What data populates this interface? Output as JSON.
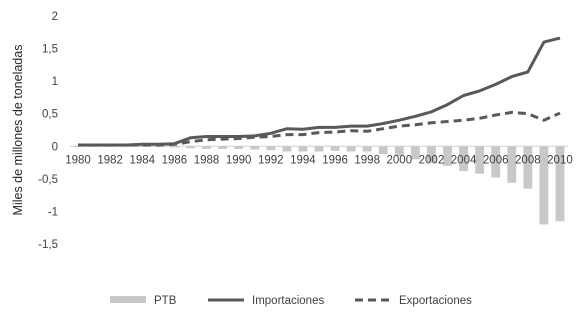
{
  "chart_data": {
    "type": "bar+line",
    "title": "",
    "xlabel": "",
    "ylabel": "Miles de millones de toneladas",
    "ylim": [
      -1.5,
      2
    ],
    "yticks": [
      {
        "value": 2,
        "label": "2"
      },
      {
        "value": 1.5,
        "label": "1,5"
      },
      {
        "value": 1,
        "label": "1"
      },
      {
        "value": 0.5,
        "label": "0,5"
      },
      {
        "value": 0,
        "label": "0"
      },
      {
        "value": -0.5,
        "label": "-0,5"
      },
      {
        "value": -1,
        "label": "-1"
      },
      {
        "value": -1.5,
        "label": "-1,5"
      }
    ],
    "x": [
      1980,
      1981,
      1982,
      1983,
      1984,
      1985,
      1986,
      1987,
      1988,
      1989,
      1990,
      1991,
      1992,
      1993,
      1994,
      1995,
      1996,
      1997,
      1998,
      1999,
      2000,
      2001,
      2002,
      2003,
      2004,
      2005,
      2006,
      2007,
      2008,
      2009,
      2010
    ],
    "xtick_labels": [
      "1980",
      "1982",
      "1984",
      "1986",
      "1988",
      "1990",
      "1992",
      "1994",
      "1996",
      "1998",
      "2000",
      "2002",
      "2004",
      "2006",
      "2008",
      "2010"
    ],
    "legend_position": "bottom",
    "grid": false,
    "series": [
      {
        "name": "PTB",
        "kind": "bar",
        "color": "#c8c8c8",
        "values": [
          -0.01,
          -0.01,
          -0.01,
          -0.01,
          -0.01,
          -0.01,
          -0.02,
          -0.03,
          -0.04,
          -0.04,
          -0.04,
          -0.05,
          -0.06,
          -0.08,
          -0.08,
          -0.08,
          -0.07,
          -0.08,
          -0.08,
          -0.12,
          -0.15,
          -0.2,
          -0.25,
          -0.3,
          -0.38,
          -0.42,
          -0.48,
          -0.56,
          -0.65,
          -1.2,
          -1.15
        ]
      },
      {
        "name": "Importaciones",
        "kind": "line",
        "style": "solid",
        "color": "#595959",
        "values": [
          0.02,
          0.02,
          0.02,
          0.02,
          0.03,
          0.03,
          0.04,
          0.13,
          0.15,
          0.15,
          0.15,
          0.16,
          0.2,
          0.27,
          0.26,
          0.29,
          0.29,
          0.31,
          0.31,
          0.35,
          0.4,
          0.46,
          0.53,
          0.64,
          0.78,
          0.85,
          0.95,
          1.07,
          1.14,
          1.6,
          1.66
        ]
      },
      {
        "name": "Exportaciones",
        "kind": "line",
        "style": "dashed",
        "color": "#595959",
        "values": [
          0.02,
          0.02,
          0.02,
          0.02,
          0.02,
          0.02,
          0.03,
          0.07,
          0.1,
          0.11,
          0.12,
          0.14,
          0.15,
          0.18,
          0.18,
          0.21,
          0.22,
          0.24,
          0.23,
          0.27,
          0.31,
          0.33,
          0.36,
          0.38,
          0.4,
          0.43,
          0.48,
          0.52,
          0.5,
          0.4,
          0.51
        ]
      }
    ]
  }
}
